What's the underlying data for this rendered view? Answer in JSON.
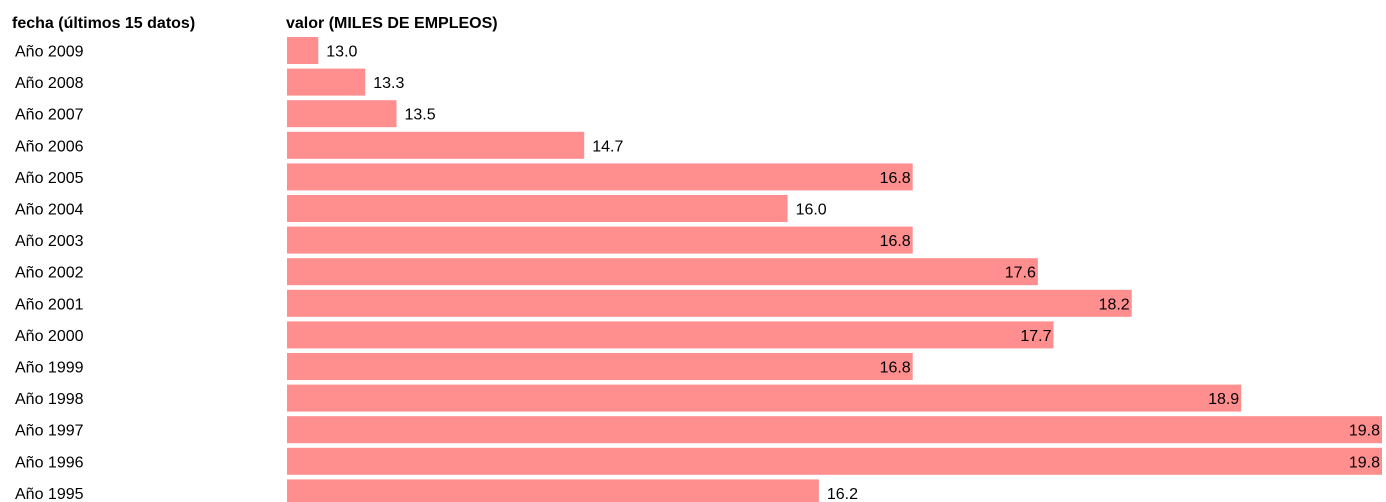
{
  "header": {
    "category_label": "fecha (últimos 15 datos)",
    "value_label": "valor (MILES DE EMPLEOS)"
  },
  "chart_data": {
    "type": "bar",
    "orientation": "horizontal",
    "bar_color": "#ff8f8f",
    "categories": [
      "Año 2009",
      "Año 2008",
      "Año 2007",
      "Año 2006",
      "Año 2005",
      "Año 2004",
      "Año 2003",
      "Año 2002",
      "Año 2001",
      "Año 2000",
      "Año 1999",
      "Año 1998",
      "Año 1997",
      "Año 1996",
      "Año 1995"
    ],
    "values": [
      13.0,
      13.3,
      13.5,
      14.7,
      16.8,
      16.0,
      16.8,
      17.6,
      18.2,
      17.7,
      16.8,
      18.9,
      19.8,
      19.8,
      16.2
    ],
    "value_labels": [
      "13.0",
      "13.3",
      "13.5",
      "14.7",
      "16.8",
      "16.0",
      "16.8",
      "17.6",
      "18.2",
      "17.7",
      "16.8",
      "18.9",
      "19.8",
      "19.8",
      "16.2"
    ],
    "xlim": [
      12.8,
      19.8
    ]
  }
}
